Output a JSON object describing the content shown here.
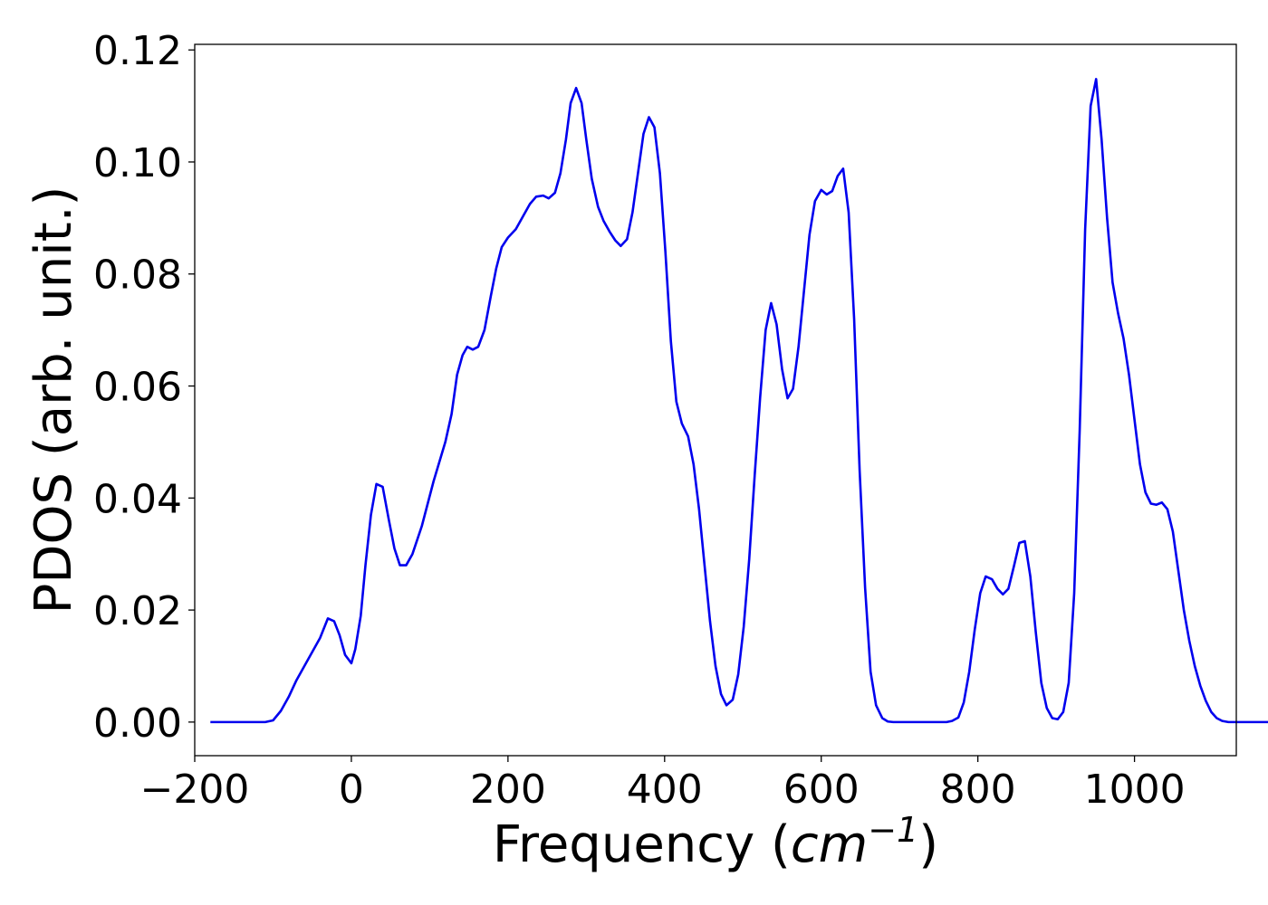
{
  "chart_data": {
    "type": "line",
    "title": "",
    "xlabel_main": "Frequency (",
    "xlabel_unit": "cm",
    "xlabel_sup": "−1",
    "xlabel_close": ")",
    "ylabel": "PDOS (arb. unit.)",
    "xlim": [
      -200,
      1130
    ],
    "ylim": [
      -0.006,
      0.121
    ],
    "grid": false,
    "legend": "none",
    "x_ticks": [
      {
        "value": -200,
        "label": "−200"
      },
      {
        "value": 0,
        "label": "0"
      },
      {
        "value": 200,
        "label": "200"
      },
      {
        "value": 400,
        "label": "400"
      },
      {
        "value": 600,
        "label": "600"
      },
      {
        "value": 800,
        "label": "800"
      },
      {
        "value": 1000,
        "label": "1000"
      }
    ],
    "y_ticks": [
      {
        "value": 0.0,
        "label": "0.00"
      },
      {
        "value": 0.02,
        "label": "0.02"
      },
      {
        "value": 0.04,
        "label": "0.04"
      },
      {
        "value": 0.06,
        "label": "0.06"
      },
      {
        "value": 0.08,
        "label": "0.08"
      },
      {
        "value": 0.1,
        "label": "0.10"
      },
      {
        "value": 0.12,
        "label": "0.12"
      }
    ],
    "series": [
      {
        "color": "#0000ee",
        "points": [
          [
            -180,
            0.0
          ],
          [
            -110,
            0.0
          ],
          [
            -100,
            0.0003
          ],
          [
            -90,
            0.002
          ],
          [
            -80,
            0.0045
          ],
          [
            -70,
            0.0075
          ],
          [
            -60,
            0.01
          ],
          [
            -50,
            0.0125
          ],
          [
            -40,
            0.015
          ],
          [
            -30,
            0.0185
          ],
          [
            -22,
            0.018
          ],
          [
            -15,
            0.0155
          ],
          [
            -8,
            0.012
          ],
          [
            0,
            0.0105
          ],
          [
            5,
            0.013
          ],
          [
            12,
            0.019
          ],
          [
            18,
            0.028
          ],
          [
            25,
            0.037
          ],
          [
            32,
            0.0425
          ],
          [
            40,
            0.042
          ],
          [
            48,
            0.036
          ],
          [
            55,
            0.031
          ],
          [
            62,
            0.028
          ],
          [
            70,
            0.028
          ],
          [
            78,
            0.03
          ],
          [
            90,
            0.035
          ],
          [
            105,
            0.043
          ],
          [
            120,
            0.05
          ],
          [
            128,
            0.055
          ],
          [
            135,
            0.062
          ],
          [
            142,
            0.0655
          ],
          [
            148,
            0.067
          ],
          [
            155,
            0.0665
          ],
          [
            162,
            0.067
          ],
          [
            170,
            0.07
          ],
          [
            178,
            0.076
          ],
          [
            185,
            0.081
          ],
          [
            192,
            0.0848
          ],
          [
            200,
            0.0865
          ],
          [
            210,
            0.088
          ],
          [
            220,
            0.0905
          ],
          [
            228,
            0.0925
          ],
          [
            236,
            0.0938
          ],
          [
            245,
            0.094
          ],
          [
            252,
            0.0935
          ],
          [
            260,
            0.0945
          ],
          [
            267,
            0.098
          ],
          [
            274,
            0.104
          ],
          [
            280,
            0.1105
          ],
          [
            287,
            0.1132
          ],
          [
            294,
            0.1105
          ],
          [
            300,
            0.104
          ],
          [
            307,
            0.097
          ],
          [
            315,
            0.092
          ],
          [
            322,
            0.0895
          ],
          [
            330,
            0.0875
          ],
          [
            337,
            0.086
          ],
          [
            344,
            0.085
          ],
          [
            352,
            0.0862
          ],
          [
            359,
            0.091
          ],
          [
            366,
            0.098
          ],
          [
            373,
            0.105
          ],
          [
            380,
            0.108
          ],
          [
            387,
            0.1062
          ],
          [
            394,
            0.098
          ],
          [
            401,
            0.084
          ],
          [
            408,
            0.068
          ],
          [
            415,
            0.0572
          ],
          [
            422,
            0.0533
          ],
          [
            430,
            0.051
          ],
          [
            437,
            0.046
          ],
          [
            444,
            0.038
          ],
          [
            451,
            0.028
          ],
          [
            458,
            0.018
          ],
          [
            465,
            0.01
          ],
          [
            472,
            0.005
          ],
          [
            479,
            0.003
          ],
          [
            487,
            0.004
          ],
          [
            494,
            0.0085
          ],
          [
            501,
            0.017
          ],
          [
            508,
            0.029
          ],
          [
            515,
            0.044
          ],
          [
            522,
            0.058
          ],
          [
            529,
            0.07
          ],
          [
            536,
            0.0748
          ],
          [
            543,
            0.071
          ],
          [
            550,
            0.063
          ],
          [
            557,
            0.0578
          ],
          [
            564,
            0.0595
          ],
          [
            571,
            0.067
          ],
          [
            578,
            0.077
          ],
          [
            585,
            0.087
          ],
          [
            592,
            0.093
          ],
          [
            600,
            0.095
          ],
          [
            607,
            0.0942
          ],
          [
            614,
            0.0948
          ],
          [
            621,
            0.0975
          ],
          [
            628,
            0.0988
          ],
          [
            635,
            0.091
          ],
          [
            642,
            0.072
          ],
          [
            649,
            0.045
          ],
          [
            656,
            0.024
          ],
          [
            663,
            0.009
          ],
          [
            670,
            0.003
          ],
          [
            678,
            0.0007
          ],
          [
            685,
            0.0001
          ],
          [
            692,
            0.0
          ],
          [
            760,
            0.0
          ],
          [
            767,
            0.0002
          ],
          [
            775,
            0.0008
          ],
          [
            782,
            0.0035
          ],
          [
            789,
            0.009
          ],
          [
            796,
            0.0165
          ],
          [
            803,
            0.023
          ],
          [
            810,
            0.026
          ],
          [
            818,
            0.0255
          ],
          [
            825,
            0.0238
          ],
          [
            832,
            0.0228
          ],
          [
            839,
            0.0238
          ],
          [
            846,
            0.0278
          ],
          [
            853,
            0.032
          ],
          [
            860,
            0.0323
          ],
          [
            867,
            0.026
          ],
          [
            874,
            0.016
          ],
          [
            881,
            0.007
          ],
          [
            888,
            0.0025
          ],
          [
            895,
            0.0007
          ],
          [
            902,
            0.0005
          ],
          [
            909,
            0.0018
          ],
          [
            916,
            0.007
          ],
          [
            923,
            0.023
          ],
          [
            930,
            0.052
          ],
          [
            937,
            0.088
          ],
          [
            944,
            0.11
          ],
          [
            951,
            0.1148
          ],
          [
            958,
            0.104
          ],
          [
            965,
            0.09
          ],
          [
            972,
            0.0785
          ],
          [
            979,
            0.073
          ],
          [
            986,
            0.0685
          ],
          [
            993,
            0.062
          ],
          [
            1000,
            0.054
          ],
          [
            1007,
            0.046
          ],
          [
            1014,
            0.041
          ],
          [
            1021,
            0.039
          ],
          [
            1028,
            0.0388
          ],
          [
            1035,
            0.0392
          ],
          [
            1042,
            0.038
          ],
          [
            1049,
            0.034
          ],
          [
            1056,
            0.027
          ],
          [
            1063,
            0.02
          ],
          [
            1070,
            0.0145
          ],
          [
            1077,
            0.01
          ],
          [
            1084,
            0.0065
          ],
          [
            1091,
            0.0038
          ],
          [
            1098,
            0.0018
          ],
          [
            1105,
            0.0007
          ],
          [
            1112,
            0.0002
          ],
          [
            1120,
            0.0
          ],
          [
            1180,
            0.0
          ]
        ]
      }
    ]
  }
}
